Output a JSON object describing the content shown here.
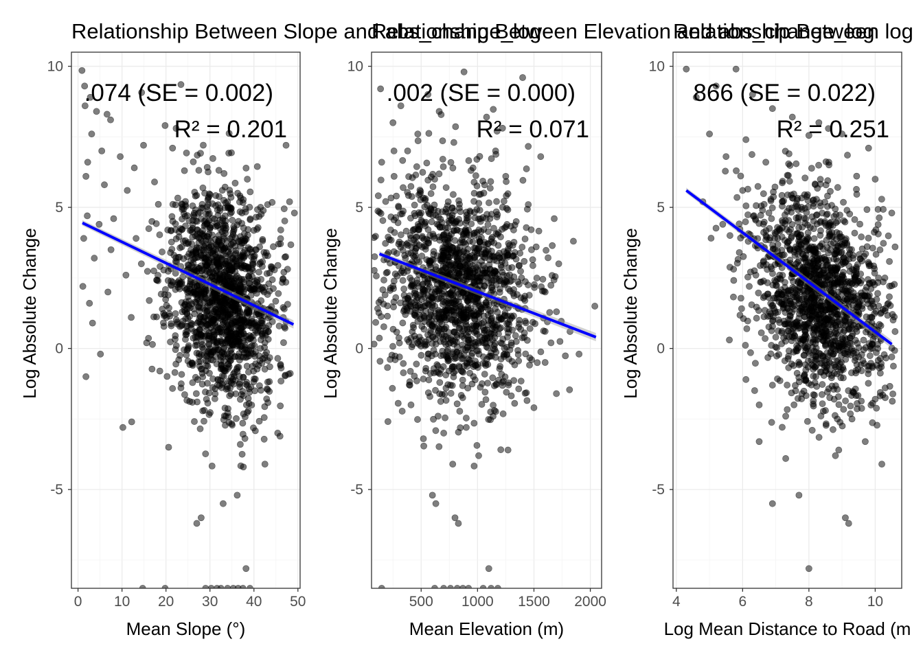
{
  "chart_data": [
    {
      "type": "scatter",
      "title": "Relationship Between Slope and abs_change_log",
      "xlabel": "Mean Slope (°)",
      "ylabel": "Log Absolute Change",
      "xlim": [
        -1.5,
        50.5
      ],
      "ylim": [
        -8.5,
        10.5
      ],
      "xticks": [
        0,
        10,
        20,
        30,
        40,
        50
      ],
      "yticks": [
        -5,
        0,
        5,
        10
      ],
      "grid": true,
      "annotations": [
        ".074 (SE = 0.002)",
        "R² = 0.201"
      ],
      "fit": {
        "x": [
          1,
          49
        ],
        "y": [
          4.45,
          0.85
        ]
      },
      "points": [
        [
          0.9,
          9.85
        ],
        [
          1.5,
          9.3
        ],
        [
          2.8,
          8.9
        ],
        [
          1.6,
          8.6
        ],
        [
          4.2,
          8.4
        ],
        [
          6.6,
          8.3
        ],
        [
          7.4,
          8.1
        ],
        [
          3.1,
          7.6
        ],
        [
          5.4,
          7.0
        ],
        [
          2.2,
          6.6
        ],
        [
          9.6,
          6.8
        ],
        [
          12.8,
          6.4
        ],
        [
          14.9,
          7.2
        ],
        [
          21.5,
          7.1
        ],
        [
          24.2,
          6.3
        ],
        [
          19.8,
          7.9
        ],
        [
          1.8,
          6.1
        ],
        [
          6.0,
          5.8
        ],
        [
          11.2,
          5.6
        ],
        [
          17.4,
          5.9
        ],
        [
          26.7,
          5.4
        ],
        [
          33.2,
          6.2
        ],
        [
          38.5,
          6.0
        ],
        [
          43.1,
          5.1
        ],
        [
          47.3,
          7.2
        ],
        [
          48.1,
          5.2
        ],
        [
          49.2,
          4.8
        ],
        [
          46.1,
          4.2
        ],
        [
          2.1,
          4.7
        ],
        [
          4.8,
          4.4
        ],
        [
          8.1,
          4.6
        ],
        [
          13.2,
          3.9
        ],
        [
          16.8,
          4.5
        ],
        [
          20.4,
          4.2
        ],
        [
          23.6,
          3.6
        ],
        [
          27.8,
          4.1
        ],
        [
          30.3,
          3.4
        ],
        [
          33.9,
          3.8
        ],
        [
          37.2,
          3.1
        ],
        [
          40.5,
          3.5
        ],
        [
          43.9,
          2.9
        ],
        [
          45.6,
          3.7
        ],
        [
          1.3,
          3.9
        ],
        [
          3.7,
          3.2
        ],
        [
          7.5,
          3.5
        ],
        [
          10.9,
          2.6
        ],
        [
          14.4,
          3.0
        ],
        [
          18.2,
          2.4
        ],
        [
          22.1,
          2.9
        ],
        [
          25.5,
          2.1
        ],
        [
          28.9,
          2.6
        ],
        [
          31.6,
          1.8
        ],
        [
          35.4,
          2.3
        ],
        [
          38.8,
          1.5
        ],
        [
          42.3,
          2.0
        ],
        [
          44.8,
          1.3
        ],
        [
          1.1,
          2.2
        ],
        [
          2.6,
          1.6
        ],
        [
          6.8,
          2.0
        ],
        [
          12.1,
          1.1
        ],
        [
          16.2,
          1.7
        ],
        [
          21.2,
          0.8
        ],
        [
          24.8,
          1.4
        ],
        [
          27.5,
          0.5
        ],
        [
          30.8,
          1.0
        ],
        [
          34.1,
          0.2
        ],
        [
          36.7,
          0.9
        ],
        [
          39.6,
          0.1
        ],
        [
          43.3,
          0.6
        ],
        [
          46.9,
          1.4
        ],
        [
          1.8,
          -1.0
        ],
        [
          10.2,
          -2.8
        ],
        [
          12.2,
          -2.6
        ],
        [
          20.6,
          -3.5
        ],
        [
          23.4,
          -1.4
        ],
        [
          26.1,
          -0.6
        ],
        [
          29.2,
          -1.8
        ],
        [
          31.4,
          -0.3
        ],
        [
          33.6,
          -2.4
        ],
        [
          35.2,
          -1.1
        ],
        [
          36.9,
          -3.4
        ],
        [
          38.3,
          -2.0
        ],
        [
          40.2,
          -1.5
        ],
        [
          42.5,
          -4.1
        ],
        [
          45.4,
          -3.0
        ],
        [
          27.0,
          -6.2
        ],
        [
          28.0,
          -6.0
        ],
        [
          33.0,
          -5.5
        ],
        [
          36.2,
          -5.2
        ],
        [
          38.2,
          -7.8
        ],
        [
          37.6,
          -4.2
        ],
        [
          14.7,
          -8.5
        ],
        [
          19.8,
          -8.5
        ],
        [
          29.0,
          -8.5
        ],
        [
          30.3,
          -8.5
        ],
        [
          31.6,
          -8.5
        ],
        [
          32.5,
          -8.5
        ],
        [
          34.0,
          -8.5
        ],
        [
          35.3,
          -8.5
        ],
        [
          36.4,
          -8.5
        ],
        [
          37.5,
          -8.5
        ],
        [
          39.1,
          -8.5
        ],
        [
          3.3,
          0.9
        ],
        [
          5.1,
          -0.2
        ],
        [
          15.6,
          0.2
        ],
        [
          18.6,
          -0.8
        ],
        [
          22.9,
          -0.4
        ],
        [
          32.2,
          3.0
        ],
        [
          30.1,
          2.2
        ],
        [
          34.6,
          1.1
        ],
        [
          32.7,
          0.5
        ],
        [
          28.3,
          3.2
        ]
      ],
      "density": {
        "cx": 33,
        "cy": 1.8,
        "sx": 6,
        "sy": 1.9,
        "count": 1500,
        "seed": 11
      }
    },
    {
      "type": "scatter",
      "title": "Relationship Between Elevation and abs_change_log",
      "xlabel": "Mean Elevation (m)",
      "ylabel": "Log Absolute Change",
      "xlim": [
        60,
        2100
      ],
      "ylim": [
        -8.5,
        10.5
      ],
      "xticks": [
        500,
        1000,
        1500,
        2000
      ],
      "yticks": [
        -5,
        0,
        5,
        10
      ],
      "grid": true,
      "annotations": [
        ".002 (SE = 0.000)",
        "R² = 0.071"
      ],
      "fit": {
        "x": [
          130,
          2050
        ],
        "y": [
          3.35,
          0.4
        ]
      },
      "points": [
        [
          140,
          9.2
        ],
        [
          320,
          8.6
        ],
        [
          560,
          9.0
        ],
        [
          880,
          9.8
        ],
        [
          1400,
          9.6
        ],
        [
          660,
          8.4
        ],
        [
          1080,
          8.2
        ],
        [
          250,
          8.0
        ],
        [
          470,
          7.6
        ],
        [
          790,
          7.3
        ],
        [
          1160,
          7.0
        ],
        [
          1560,
          6.8
        ],
        [
          380,
          7.0
        ],
        [
          960,
          6.4
        ],
        [
          1250,
          6.1
        ],
        [
          150,
          6.6
        ],
        [
          620,
          6.0
        ],
        [
          1450,
          5.1
        ],
        [
          1680,
          4.6
        ],
        [
          1850,
          3.8
        ],
        [
          2040,
          1.5
        ],
        [
          1820,
          0.6
        ],
        [
          1900,
          -0.2
        ],
        [
          1600,
          2.0
        ],
        [
          1720,
          3.0
        ],
        [
          1520,
          3.6
        ],
        [
          280,
          5.4
        ],
        [
          500,
          4.8
        ],
        [
          740,
          5.2
        ],
        [
          1020,
          4.9
        ],
        [
          1320,
          4.2
        ],
        [
          210,
          3.4
        ],
        [
          430,
          3.0
        ],
        [
          690,
          2.6
        ],
        [
          930,
          3.8
        ],
        [
          1190,
          2.4
        ],
        [
          1420,
          1.7
        ],
        [
          180,
          1.9
        ],
        [
          360,
          1.2
        ],
        [
          600,
          0.8
        ],
        [
          850,
          1.5
        ],
        [
          1110,
          0.4
        ],
        [
          1370,
          1.0
        ],
        [
          270,
          -0.4
        ],
        [
          540,
          -0.8
        ],
        [
          760,
          -1.3
        ],
        [
          980,
          -0.6
        ],
        [
          1220,
          -1.2
        ],
        [
          1480,
          -0.4
        ],
        [
          410,
          -2.0
        ],
        [
          650,
          -2.4
        ],
        [
          900,
          -2.8
        ],
        [
          1150,
          -2.2
        ],
        [
          520,
          -3.2
        ],
        [
          700,
          -3.0
        ],
        [
          780,
          -4.1
        ],
        [
          1010,
          -3.8
        ],
        [
          1270,
          -3.6
        ],
        [
          1500,
          -2.1
        ],
        [
          600,
          -5.2
        ],
        [
          630,
          -5.5
        ],
        [
          800,
          -6.0
        ],
        [
          830,
          -6.2
        ],
        [
          1100,
          -7.8
        ],
        [
          620,
          -8.5
        ],
        [
          700,
          -8.5
        ],
        [
          760,
          -8.5
        ],
        [
          820,
          -8.5
        ],
        [
          870,
          -8.5
        ],
        [
          920,
          -8.5
        ],
        [
          1050,
          -8.5
        ],
        [
          1120,
          -8.5
        ],
        [
          1180,
          -8.5
        ],
        [
          150,
          -8.5
        ],
        [
          200,
          2.7
        ],
        [
          230,
          4.2
        ],
        [
          260,
          6.1
        ],
        [
          300,
          3.7
        ],
        [
          340,
          5.7
        ],
        [
          560,
          2.1
        ],
        [
          720,
          1.0
        ],
        [
          820,
          3.2
        ],
        [
          1000,
          2.1
        ],
        [
          1300,
          0.2
        ],
        [
          1700,
          1.3
        ]
      ],
      "density": {
        "cx": 820,
        "cy": 2.0,
        "sx": 330,
        "sy": 1.9,
        "count": 1500,
        "seed": 23
      }
    },
    {
      "type": "scatter",
      "title": "Relationship Between log",
      "xlabel": "Log Mean Distance to Road (m",
      "ylabel": "Log Absolute Change",
      "xlim": [
        3.9,
        10.8
      ],
      "ylim": [
        -8.5,
        10.5
      ],
      "xticks": [
        4,
        6,
        8,
        10
      ],
      "yticks": [
        -5,
        0,
        5,
        10
      ],
      "grid": true,
      "annotations": [
        "866 (SE = 0.022)",
        "R² = 0.251"
      ],
      "fit": {
        "x": [
          4.3,
          10.5
        ],
        "y": [
          5.6,
          0.15
        ]
      },
      "points": [
        [
          4.3,
          9.9
        ],
        [
          4.6,
          8.9
        ],
        [
          5.8,
          9.9
        ],
        [
          5.2,
          9.3
        ],
        [
          6.3,
          9.0
        ],
        [
          6.9,
          8.5
        ],
        [
          7.5,
          8.2
        ],
        [
          8.3,
          8.0
        ],
        [
          9.0,
          7.6
        ],
        [
          9.8,
          7.1
        ],
        [
          5.0,
          7.6
        ],
        [
          5.5,
          6.8
        ],
        [
          6.1,
          7.4
        ],
        [
          6.7,
          6.6
        ],
        [
          7.4,
          6.9
        ],
        [
          8.6,
          6.6
        ],
        [
          10.0,
          6.0
        ],
        [
          10.5,
          4.8
        ],
        [
          10.6,
          3.6
        ],
        [
          10.4,
          1.6
        ],
        [
          10.6,
          0.6
        ],
        [
          10.5,
          -0.3
        ],
        [
          10.3,
          -1.4
        ],
        [
          4.8,
          5.2
        ],
        [
          5.4,
          4.4
        ],
        [
          6.0,
          5.6
        ],
        [
          6.6,
          4.9
        ],
        [
          7.2,
          5.2
        ],
        [
          7.8,
          4.3
        ],
        [
          8.4,
          4.8
        ],
        [
          9.0,
          3.7
        ],
        [
          9.6,
          3.1
        ],
        [
          10.1,
          2.5
        ],
        [
          5.6,
          0.3
        ],
        [
          6.1,
          -1.1
        ],
        [
          6.5,
          -2.0
        ],
        [
          6.9,
          -1.3
        ],
        [
          7.3,
          -2.4
        ],
        [
          7.6,
          -1.5
        ],
        [
          8.1,
          -2.9
        ],
        [
          8.5,
          -2.2
        ],
        [
          8.9,
          -3.6
        ],
        [
          9.3,
          -2.5
        ],
        [
          9.7,
          -3.3
        ],
        [
          10.0,
          -1.8
        ],
        [
          6.5,
          -3.3
        ],
        [
          7.3,
          -3.9
        ],
        [
          8.8,
          -3.8
        ],
        [
          10.2,
          -4.1
        ],
        [
          6.9,
          -5.5
        ],
        [
          7.7,
          -5.2
        ],
        [
          9.1,
          -6.0
        ],
        [
          9.2,
          -6.2
        ],
        [
          8.0,
          -7.8
        ],
        [
          6.4,
          2.6
        ],
        [
          6.8,
          3.3
        ],
        [
          7.1,
          1.8
        ],
        [
          7.6,
          2.7
        ],
        [
          8.0,
          1.3
        ],
        [
          8.3,
          2.2
        ],
        [
          8.8,
          0.6
        ],
        [
          9.2,
          1.5
        ],
        [
          9.5,
          -0.3
        ],
        [
          7.0,
          0.4
        ],
        [
          8.6,
          -0.9
        ],
        [
          9.9,
          0.9
        ],
        [
          5.9,
          3.4
        ],
        [
          6.2,
          2.2
        ],
        [
          7.9,
          3.2
        ],
        [
          9.4,
          2.4
        ]
      ],
      "density": {
        "cx": 8.3,
        "cy": 1.9,
        "sx": 1.0,
        "sy": 1.8,
        "count": 1500,
        "seed": 37
      }
    }
  ]
}
